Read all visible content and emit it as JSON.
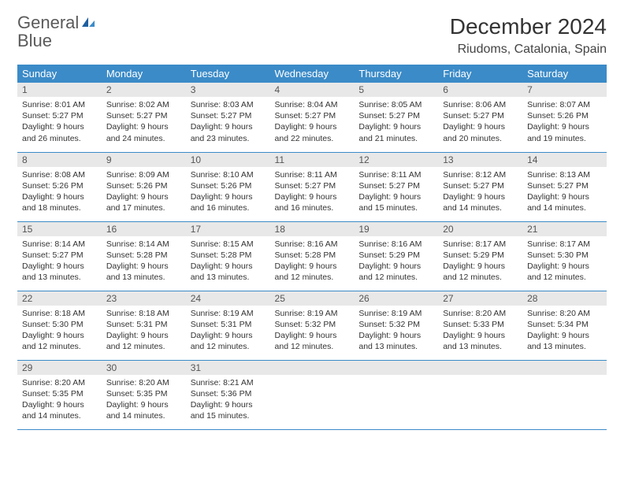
{
  "brand": {
    "name1": "General",
    "name2": "Blue"
  },
  "title": "December 2024",
  "location": "Riudoms, Catalonia, Spain",
  "colors": {
    "header_bg": "#3b8bc8",
    "header_text": "#ffffff",
    "daynum_bg": "#e8e8e8",
    "row_border": "#3b8bc8",
    "logo_gray": "#5a5a5a",
    "logo_blue": "#2f7bbf",
    "body_text": "#333333",
    "page_bg": "#ffffff"
  },
  "fonts": {
    "title_size_pt": 21,
    "location_size_pt": 12,
    "weekday_size_pt": 10,
    "daynum_size_pt": 9,
    "body_size_pt": 8
  },
  "weekdays": [
    "Sunday",
    "Monday",
    "Tuesday",
    "Wednesday",
    "Thursday",
    "Friday",
    "Saturday"
  ],
  "weeks": [
    [
      {
        "n": "1",
        "sun": "Sunrise: 8:01 AM",
        "set": "Sunset: 5:27 PM",
        "d1": "Daylight: 9 hours",
        "d2": "and 26 minutes."
      },
      {
        "n": "2",
        "sun": "Sunrise: 8:02 AM",
        "set": "Sunset: 5:27 PM",
        "d1": "Daylight: 9 hours",
        "d2": "and 24 minutes."
      },
      {
        "n": "3",
        "sun": "Sunrise: 8:03 AM",
        "set": "Sunset: 5:27 PM",
        "d1": "Daylight: 9 hours",
        "d2": "and 23 minutes."
      },
      {
        "n": "4",
        "sun": "Sunrise: 8:04 AM",
        "set": "Sunset: 5:27 PM",
        "d1": "Daylight: 9 hours",
        "d2": "and 22 minutes."
      },
      {
        "n": "5",
        "sun": "Sunrise: 8:05 AM",
        "set": "Sunset: 5:27 PM",
        "d1": "Daylight: 9 hours",
        "d2": "and 21 minutes."
      },
      {
        "n": "6",
        "sun": "Sunrise: 8:06 AM",
        "set": "Sunset: 5:27 PM",
        "d1": "Daylight: 9 hours",
        "d2": "and 20 minutes."
      },
      {
        "n": "7",
        "sun": "Sunrise: 8:07 AM",
        "set": "Sunset: 5:26 PM",
        "d1": "Daylight: 9 hours",
        "d2": "and 19 minutes."
      }
    ],
    [
      {
        "n": "8",
        "sun": "Sunrise: 8:08 AM",
        "set": "Sunset: 5:26 PM",
        "d1": "Daylight: 9 hours",
        "d2": "and 18 minutes."
      },
      {
        "n": "9",
        "sun": "Sunrise: 8:09 AM",
        "set": "Sunset: 5:26 PM",
        "d1": "Daylight: 9 hours",
        "d2": "and 17 minutes."
      },
      {
        "n": "10",
        "sun": "Sunrise: 8:10 AM",
        "set": "Sunset: 5:26 PM",
        "d1": "Daylight: 9 hours",
        "d2": "and 16 minutes."
      },
      {
        "n": "11",
        "sun": "Sunrise: 8:11 AM",
        "set": "Sunset: 5:27 PM",
        "d1": "Daylight: 9 hours",
        "d2": "and 16 minutes."
      },
      {
        "n": "12",
        "sun": "Sunrise: 8:11 AM",
        "set": "Sunset: 5:27 PM",
        "d1": "Daylight: 9 hours",
        "d2": "and 15 minutes."
      },
      {
        "n": "13",
        "sun": "Sunrise: 8:12 AM",
        "set": "Sunset: 5:27 PM",
        "d1": "Daylight: 9 hours",
        "d2": "and 14 minutes."
      },
      {
        "n": "14",
        "sun": "Sunrise: 8:13 AM",
        "set": "Sunset: 5:27 PM",
        "d1": "Daylight: 9 hours",
        "d2": "and 14 minutes."
      }
    ],
    [
      {
        "n": "15",
        "sun": "Sunrise: 8:14 AM",
        "set": "Sunset: 5:27 PM",
        "d1": "Daylight: 9 hours",
        "d2": "and 13 minutes."
      },
      {
        "n": "16",
        "sun": "Sunrise: 8:14 AM",
        "set": "Sunset: 5:28 PM",
        "d1": "Daylight: 9 hours",
        "d2": "and 13 minutes."
      },
      {
        "n": "17",
        "sun": "Sunrise: 8:15 AM",
        "set": "Sunset: 5:28 PM",
        "d1": "Daylight: 9 hours",
        "d2": "and 13 minutes."
      },
      {
        "n": "18",
        "sun": "Sunrise: 8:16 AM",
        "set": "Sunset: 5:28 PM",
        "d1": "Daylight: 9 hours",
        "d2": "and 12 minutes."
      },
      {
        "n": "19",
        "sun": "Sunrise: 8:16 AM",
        "set": "Sunset: 5:29 PM",
        "d1": "Daylight: 9 hours",
        "d2": "and 12 minutes."
      },
      {
        "n": "20",
        "sun": "Sunrise: 8:17 AM",
        "set": "Sunset: 5:29 PM",
        "d1": "Daylight: 9 hours",
        "d2": "and 12 minutes."
      },
      {
        "n": "21",
        "sun": "Sunrise: 8:17 AM",
        "set": "Sunset: 5:30 PM",
        "d1": "Daylight: 9 hours",
        "d2": "and 12 minutes."
      }
    ],
    [
      {
        "n": "22",
        "sun": "Sunrise: 8:18 AM",
        "set": "Sunset: 5:30 PM",
        "d1": "Daylight: 9 hours",
        "d2": "and 12 minutes."
      },
      {
        "n": "23",
        "sun": "Sunrise: 8:18 AM",
        "set": "Sunset: 5:31 PM",
        "d1": "Daylight: 9 hours",
        "d2": "and 12 minutes."
      },
      {
        "n": "24",
        "sun": "Sunrise: 8:19 AM",
        "set": "Sunset: 5:31 PM",
        "d1": "Daylight: 9 hours",
        "d2": "and 12 minutes."
      },
      {
        "n": "25",
        "sun": "Sunrise: 8:19 AM",
        "set": "Sunset: 5:32 PM",
        "d1": "Daylight: 9 hours",
        "d2": "and 12 minutes."
      },
      {
        "n": "26",
        "sun": "Sunrise: 8:19 AM",
        "set": "Sunset: 5:32 PM",
        "d1": "Daylight: 9 hours",
        "d2": "and 13 minutes."
      },
      {
        "n": "27",
        "sun": "Sunrise: 8:20 AM",
        "set": "Sunset: 5:33 PM",
        "d1": "Daylight: 9 hours",
        "d2": "and 13 minutes."
      },
      {
        "n": "28",
        "sun": "Sunrise: 8:20 AM",
        "set": "Sunset: 5:34 PM",
        "d1": "Daylight: 9 hours",
        "d2": "and 13 minutes."
      }
    ],
    [
      {
        "n": "29",
        "sun": "Sunrise: 8:20 AM",
        "set": "Sunset: 5:35 PM",
        "d1": "Daylight: 9 hours",
        "d2": "and 14 minutes."
      },
      {
        "n": "30",
        "sun": "Sunrise: 8:20 AM",
        "set": "Sunset: 5:35 PM",
        "d1": "Daylight: 9 hours",
        "d2": "and 14 minutes."
      },
      {
        "n": "31",
        "sun": "Sunrise: 8:21 AM",
        "set": "Sunset: 5:36 PM",
        "d1": "Daylight: 9 hours",
        "d2": "and 15 minutes."
      },
      {
        "n": "",
        "sun": "",
        "set": "",
        "d1": "",
        "d2": ""
      },
      {
        "n": "",
        "sun": "",
        "set": "",
        "d1": "",
        "d2": ""
      },
      {
        "n": "",
        "sun": "",
        "set": "",
        "d1": "",
        "d2": ""
      },
      {
        "n": "",
        "sun": "",
        "set": "",
        "d1": "",
        "d2": ""
      }
    ]
  ]
}
